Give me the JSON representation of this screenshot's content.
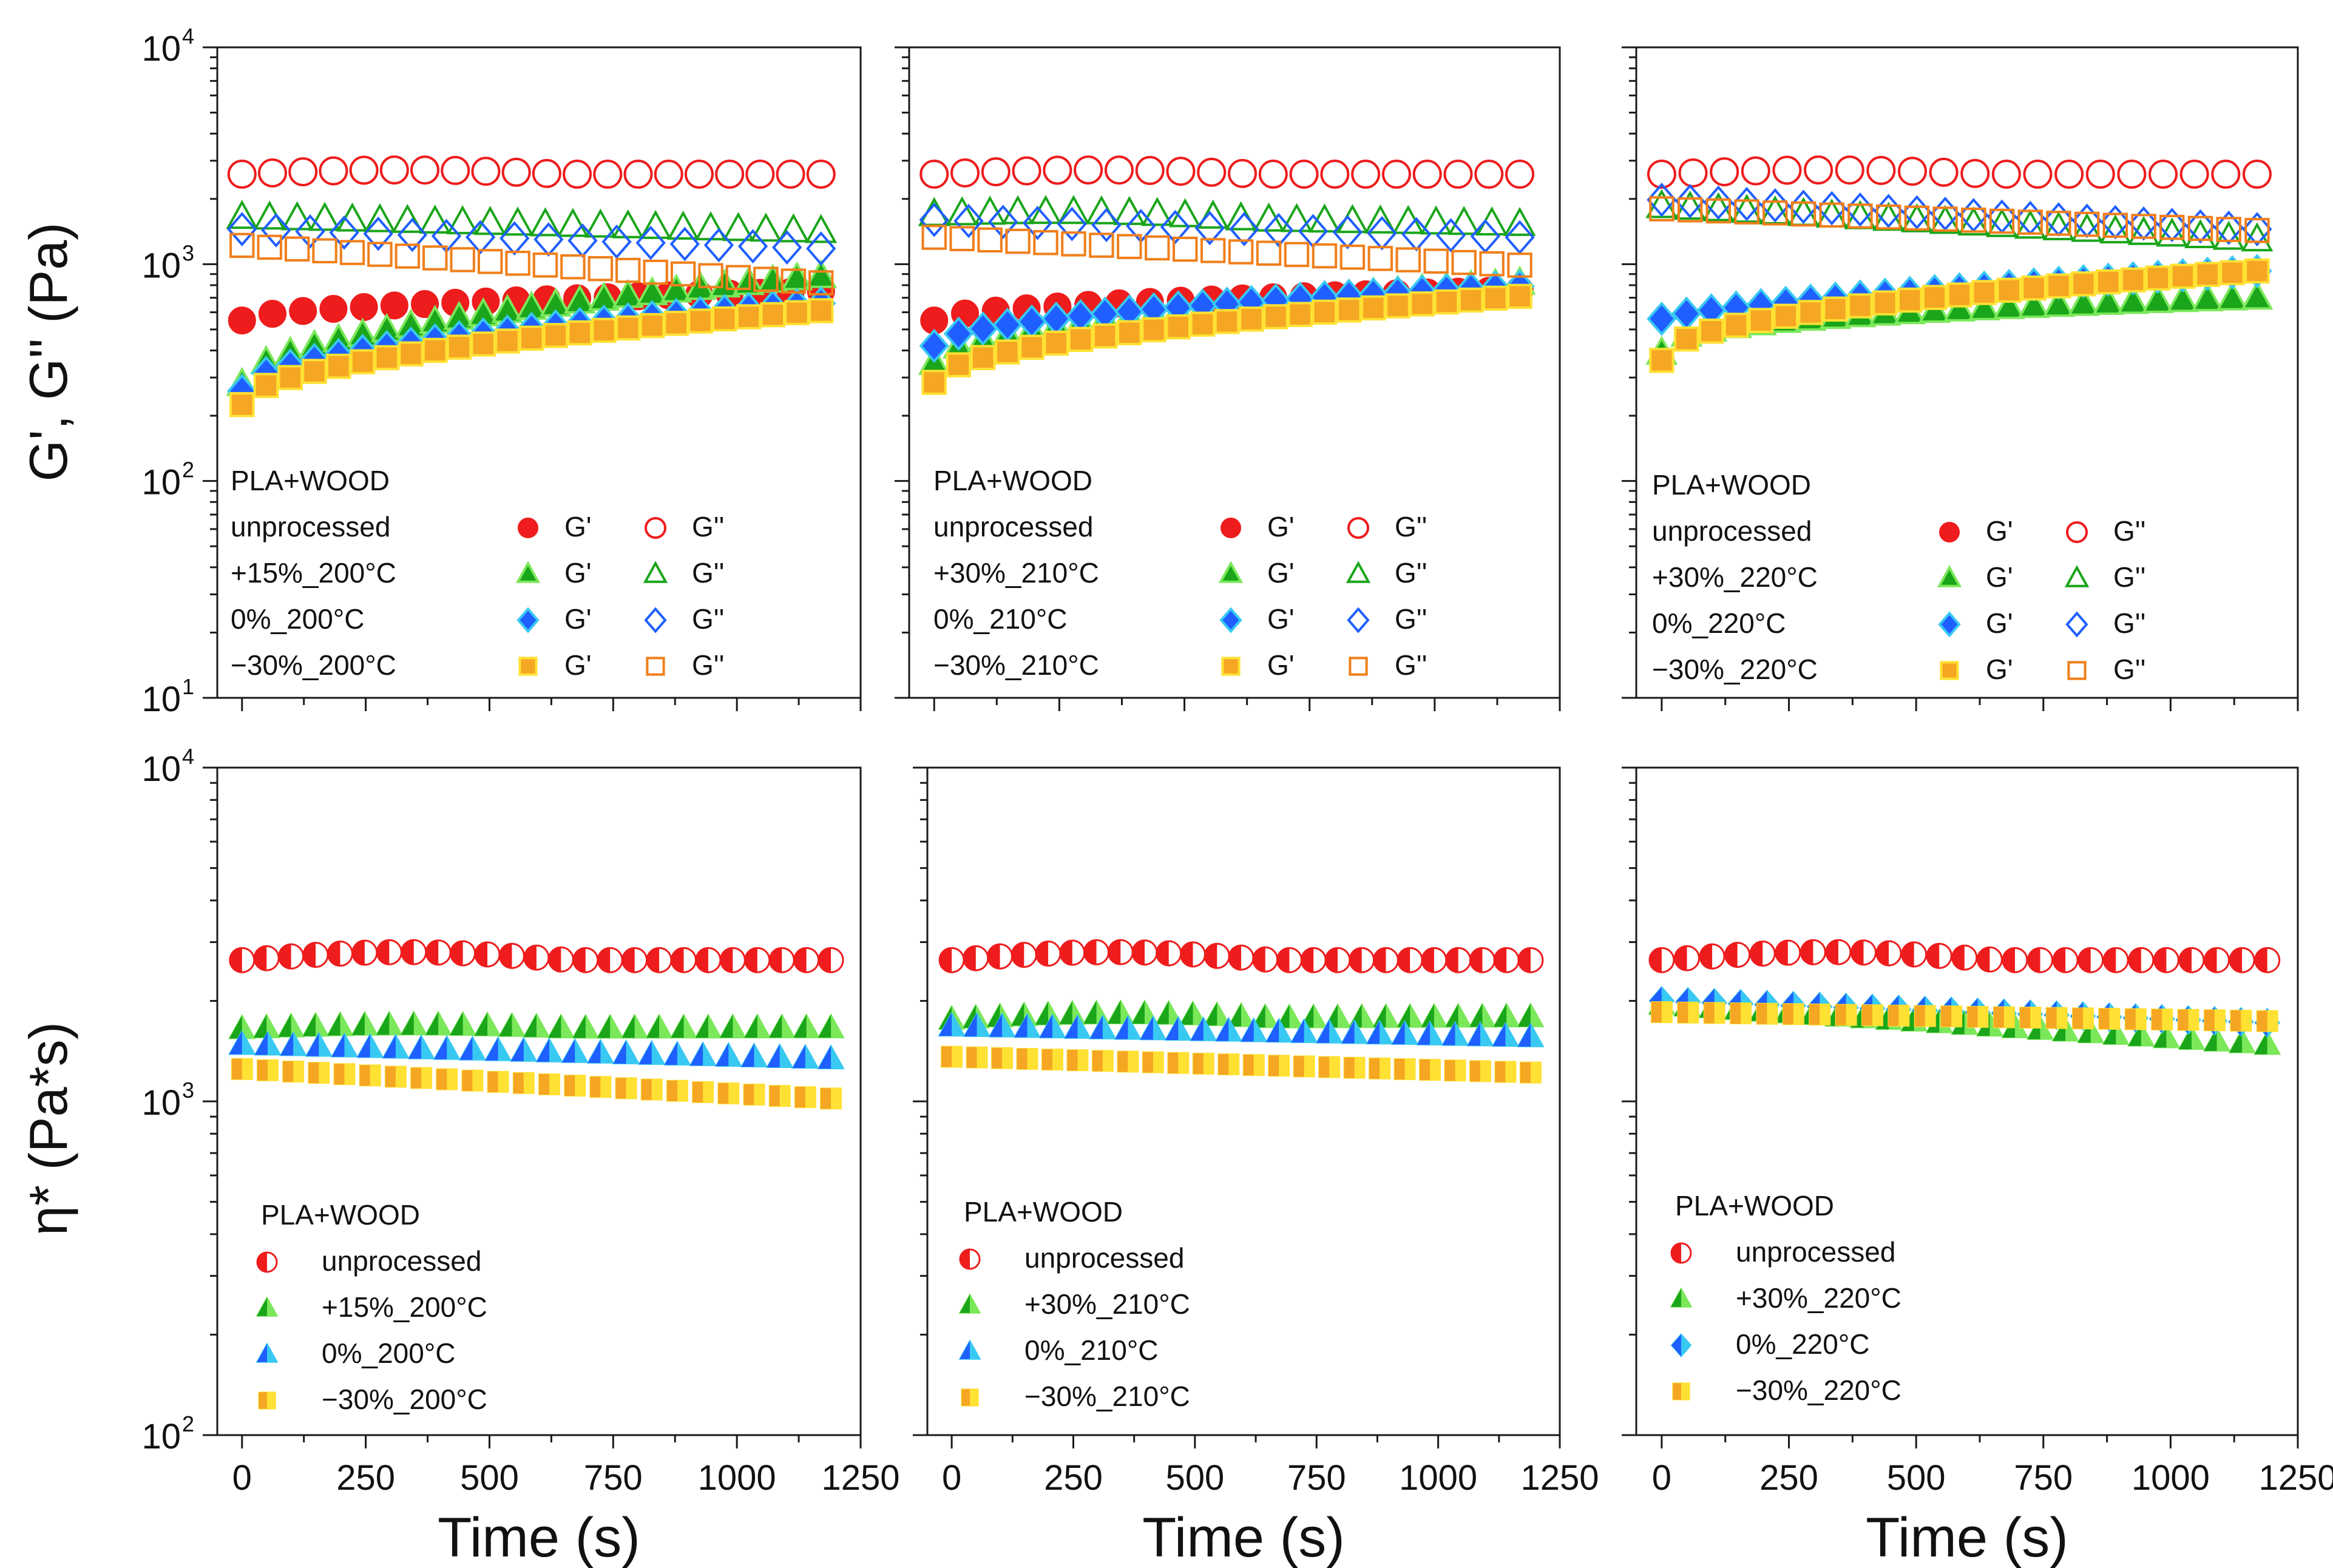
{
  "figure": {
    "top_ylabel": "G', G'' (Pa)",
    "bottom_ylabel": "η* (Pa*s)"
  },
  "colors": {
    "unprocessed": "#ee1c1c",
    "plus": "#1aa51a",
    "plus_edge": "#7be85a",
    "zero": "#1f5fff",
    "zero_edge": "#38c9f2",
    "minus": "#f5a623",
    "minus_edge": "#ffe133",
    "minus_open": "#f07f1a"
  },
  "chart_data": [
    {
      "type": "scatter",
      "panel": "top-left",
      "title": "",
      "xlabel": "",
      "ylabel": "G', G'' (Pa)",
      "xlim": [
        -50,
        1250
      ],
      "ylim": [
        10,
        10000
      ],
      "yscale": "log",
      "x_ticks": [
        "0",
        "250",
        "500",
        "750",
        "1000",
        "1250"
      ],
      "y_ticks": [
        {
          "base": "10",
          "exp": "1"
        },
        {
          "base": "10",
          "exp": "2"
        },
        {
          "base": "10",
          "exp": "3"
        },
        {
          "base": "10",
          "exp": "4"
        }
      ],
      "legend": {
        "title": "PLA+WOOD",
        "rows": [
          {
            "label": "unprocessed",
            "g1": "G'",
            "g2": "G''"
          },
          {
            "label": "+15%_200°C",
            "g1": "G'",
            "g2": "G''"
          },
          {
            "label": "0%_200°C",
            "g1": "G'",
            "g2": "G''"
          },
          {
            "label": "−30%_200°C",
            "g1": "G'",
            "g2": "G''"
          }
        ]
      },
      "series": [
        {
          "name": "unprocessed G'",
          "marker": "circle",
          "fill": "filled",
          "color": "unprocessed",
          "x_start": 0,
          "x_end": 1170,
          "count": 20,
          "y_start": 550,
          "y_end": 750,
          "shape": 0.5
        },
        {
          "name": "unprocessed G''",
          "marker": "circle",
          "fill": "open",
          "color": "unprocessed",
          "x_start": 0,
          "x_end": 1170,
          "count": 20,
          "y_start": 2600,
          "y_end": 2600,
          "y_peak": 2720,
          "shape": 1
        },
        {
          "name": "+15%_200°C G'",
          "marker": "triangle",
          "fill": "filled",
          "color": "plus",
          "x_start": 0,
          "x_end": 1170,
          "count": 25,
          "y_start": 280,
          "y_end": 880,
          "shape": 0.5
        },
        {
          "name": "+15%_200°C G''",
          "marker": "triangle",
          "fill": "open",
          "color": "plus",
          "x_start": 0,
          "x_end": 1170,
          "count": 22,
          "y_start": 1650,
          "y_end": 1420,
          "shape": 1
        },
        {
          "name": "0%_200°C G'",
          "marker": "diamond",
          "fill": "filled",
          "color": "zero",
          "x_start": 0,
          "x_end": 1170,
          "count": 25,
          "y_start": 260,
          "y_end": 660,
          "shape": 0.5
        },
        {
          "name": "0%_200°C G''",
          "marker": "diamond",
          "fill": "open",
          "color": "zero",
          "x_start": 0,
          "x_end": 1170,
          "count": 18,
          "y_start": 1450,
          "y_end": 1180,
          "shape": 1
        },
        {
          "name": "−30%_200°C G'",
          "marker": "square",
          "fill": "filled",
          "color": "minus",
          "x_start": 0,
          "x_end": 1170,
          "count": 25,
          "y_start": 225,
          "y_end": 610,
          "shape": 0.5
        },
        {
          "name": "−30%_200°C G''",
          "marker": "square",
          "fill": "open",
          "color": "minus",
          "x_start": 0,
          "x_end": 1170,
          "count": 22,
          "y_start": 1220,
          "y_end": 820,
          "shape": 1
        }
      ]
    },
    {
      "type": "scatter",
      "panel": "top-middle",
      "title": "",
      "xlabel": "",
      "ylabel": "",
      "xlim": [
        -50,
        1250
      ],
      "ylim": [
        10,
        10000
      ],
      "yscale": "log",
      "x_ticks": [
        "0",
        "250",
        "500",
        "750",
        "1000",
        "1250"
      ],
      "y_ticks": [],
      "legend": {
        "title": "PLA+WOOD",
        "rows": [
          {
            "label": "unprocessed",
            "g1": "G'",
            "g2": "G''"
          },
          {
            "label": "+30%_210°C",
            "g1": "G'",
            "g2": "G''"
          },
          {
            "label": "0%_210°C",
            "g1": "G'",
            "g2": "G''"
          },
          {
            "label": "−30%_210°C",
            "g1": "G'",
            "g2": "G''"
          }
        ]
      },
      "series": [
        {
          "name": "unprocessed G'",
          "marker": "circle",
          "fill": "filled",
          "color": "unprocessed",
          "x_start": 0,
          "x_end": 1170,
          "count": 20,
          "y_start": 550,
          "y_end": 760,
          "shape": 0.5
        },
        {
          "name": "unprocessed G''",
          "marker": "circle",
          "fill": "open",
          "color": "unprocessed",
          "x_start": 0,
          "x_end": 1170,
          "count": 20,
          "y_start": 2600,
          "y_end": 2600,
          "y_peak": 2720,
          "shape": 1
        },
        {
          "name": "+30%_210°C G'",
          "marker": "triangle",
          "fill": "filled",
          "color": "plus",
          "x_start": 0,
          "x_end": 1170,
          "count": 25,
          "y_start": 350,
          "y_end": 820,
          "shape": 0.5
        },
        {
          "name": "+30%_210°C G''",
          "marker": "triangle",
          "fill": "open",
          "color": "plus",
          "x_start": 0,
          "x_end": 1170,
          "count": 22,
          "y_start": 1700,
          "y_end": 1530,
          "y_peak": 1780,
          "shape": 1
        },
        {
          "name": "0%_210°C G'",
          "marker": "diamond",
          "fill": "filled",
          "color": "zero",
          "x_start": 0,
          "x_end": 1170,
          "count": 25,
          "y_start": 420,
          "y_end": 790,
          "shape": 0.5
        },
        {
          "name": "0%_210°C G''",
          "marker": "diamond",
          "fill": "open",
          "color": "zero",
          "x_start": 0,
          "x_end": 1170,
          "count": 18,
          "y_start": 1600,
          "y_end": 1330,
          "shape": 1
        },
        {
          "name": "−30%_210°C G'",
          "marker": "square",
          "fill": "filled",
          "color": "minus",
          "x_start": 0,
          "x_end": 1170,
          "count": 25,
          "y_start": 285,
          "y_end": 710,
          "shape": 0.5
        },
        {
          "name": "−30%_210°C G''",
          "marker": "square",
          "fill": "open",
          "color": "minus",
          "x_start": 0,
          "x_end": 1170,
          "count": 22,
          "y_start": 1330,
          "y_end": 990,
          "shape": 1
        }
      ]
    },
    {
      "type": "scatter",
      "panel": "top-right",
      "title": "",
      "xlabel": "",
      "ylabel": "",
      "xlim": [
        -50,
        1250
      ],
      "ylim": [
        10,
        10000
      ],
      "yscale": "log",
      "x_ticks": [
        "0",
        "250",
        "500",
        "750",
        "1000",
        "1250"
      ],
      "y_ticks": [],
      "legend": {
        "title": "PLA+WOOD",
        "rows": [
          {
            "label": "unprocessed",
            "g1": "G'",
            "g2": "G''"
          },
          {
            "label": "+30%_220°C",
            "g1": "G'",
            "g2": "G''"
          },
          {
            "label": "0%_220°C",
            "g1": "G'",
            "g2": "G''"
          },
          {
            "label": "−30%_220°C",
            "g1": "G'",
            "g2": "G''"
          }
        ]
      },
      "series": [
        {
          "name": "unprocessed G''",
          "marker": "circle",
          "fill": "open",
          "color": "unprocessed",
          "x_start": 0,
          "x_end": 1170,
          "count": 20,
          "y_start": 2600,
          "y_end": 2600,
          "y_peak": 2720,
          "shape": 1
        },
        {
          "name": "+30%_220°C G'",
          "marker": "triangle",
          "fill": "filled",
          "color": "plus",
          "x_start": 0,
          "x_end": 1170,
          "count": 25,
          "y_start": 390,
          "y_end": 700,
          "shape": 0.35
        },
        {
          "name": "+30%_220°C G''",
          "marker": "triangle",
          "fill": "open",
          "color": "plus",
          "x_start": 0,
          "x_end": 1170,
          "count": 22,
          "y_start": 1850,
          "y_end": 1300,
          "shape": 1
        },
        {
          "name": "0%_220°C G'",
          "marker": "diamond",
          "fill": "filled",
          "color": "zero",
          "x_start": 0,
          "x_end": 1170,
          "count": 25,
          "y_start": 560,
          "y_end": 930,
          "shape": 0.7
        },
        {
          "name": "0%_220°C G''",
          "marker": "diamond",
          "fill": "open",
          "color": "zero",
          "x_start": 0,
          "x_end": 1170,
          "count": 22,
          "y_start": 1980,
          "y_end": 1450,
          "shape": 1
        },
        {
          "name": "−30%_220°C G'",
          "marker": "square",
          "fill": "filled",
          "color": "minus",
          "x_start": 0,
          "x_end": 1170,
          "count": 25,
          "y_start": 360,
          "y_end": 930,
          "shape": 0.45
        },
        {
          "name": "−30%_220°C G''",
          "marker": "square",
          "fill": "open",
          "color": "minus",
          "x_start": 0,
          "x_end": 1170,
          "count": 22,
          "y_start": 1800,
          "y_end": 1430,
          "shape": 1
        }
      ]
    },
    {
      "type": "scatter",
      "panel": "bottom-left",
      "title": "",
      "xlabel": "Time (s)",
      "ylabel": "η* (Pa*s)",
      "xlim": [
        -50,
        1250
      ],
      "ylim": [
        100,
        10000
      ],
      "yscale": "log",
      "x_ticks": [
        "0",
        "250",
        "500",
        "750",
        "1000",
        "1250"
      ],
      "y_ticks": [
        {
          "base": "10",
          "exp": "2"
        },
        {
          "base": "10",
          "exp": "3"
        },
        {
          "base": "10",
          "exp": "4"
        }
      ],
      "legend": {
        "title": "PLA+WOOD",
        "rows": [
          {
            "label": "unprocessed"
          },
          {
            "label": "+15%_200°C"
          },
          {
            "label": "0%_200°C"
          },
          {
            "label": "−30%_200°C"
          }
        ]
      },
      "series": [
        {
          "name": "unprocessed",
          "marker": "circle",
          "fill": "half",
          "color": "unprocessed",
          "x_start": 0,
          "x_end": 1190,
          "count": 25,
          "y_start": 2650,
          "y_end": 2650,
          "y_peak": 2800,
          "shape": 1
        },
        {
          "name": "+15%_200°C",
          "marker": "triangle",
          "fill": "half",
          "color": "plus",
          "x_start": 0,
          "x_end": 1190,
          "count": 25,
          "y_start": 1650,
          "y_end": 1660,
          "y_peak": 1700,
          "shape": 1
        },
        {
          "name": "0%_200°C",
          "marker": "triangle",
          "fill": "half",
          "color": "zero",
          "x_start": 0,
          "x_end": 1190,
          "count": 24,
          "y_start": 1480,
          "y_end": 1340,
          "shape": 1
        },
        {
          "name": "−30%_200°C",
          "marker": "square",
          "fill": "half",
          "color": "minus",
          "x_start": 0,
          "x_end": 1190,
          "count": 24,
          "y_start": 1250,
          "y_end": 1020,
          "shape": 1
        }
      ]
    },
    {
      "type": "scatter",
      "panel": "bottom-middle",
      "title": "",
      "xlabel": "Time (s)",
      "ylabel": "",
      "xlim": [
        -50,
        1250
      ],
      "ylim": [
        100,
        10000
      ],
      "yscale": "log",
      "x_ticks": [
        "0",
        "250",
        "500",
        "750",
        "1000",
        "1250"
      ],
      "y_ticks": [],
      "legend": {
        "title": "PLA+WOOD",
        "rows": [
          {
            "label": "unprocessed"
          },
          {
            "label": "+30%_210°C"
          },
          {
            "label": "0%_210°C"
          },
          {
            "label": "−30%_210°C"
          }
        ]
      },
      "series": [
        {
          "name": "unprocessed",
          "marker": "circle",
          "fill": "half",
          "color": "unprocessed",
          "x_start": 0,
          "x_end": 1190,
          "count": 25,
          "y_start": 2650,
          "y_end": 2650,
          "y_peak": 2800,
          "shape": 1
        },
        {
          "name": "+30%_210°C",
          "marker": "triangle",
          "fill": "half",
          "color": "plus",
          "x_start": 0,
          "x_end": 1190,
          "count": 25,
          "y_start": 1760,
          "y_end": 1790,
          "y_peak": 1850,
          "shape": 1
        },
        {
          "name": "0%_210°C",
          "marker": "triangle",
          "fill": "half",
          "color": "zero",
          "x_start": 0,
          "x_end": 1190,
          "count": 24,
          "y_start": 1680,
          "y_end": 1560,
          "shape": 1
        },
        {
          "name": "−30%_210°C",
          "marker": "square",
          "fill": "half",
          "color": "minus",
          "x_start": 0,
          "x_end": 1190,
          "count": 24,
          "y_start": 1360,
          "y_end": 1220,
          "shape": 1
        }
      ]
    },
    {
      "type": "scatter",
      "panel": "bottom-right",
      "title": "",
      "xlabel": "Time (s)",
      "ylabel": "",
      "xlim": [
        -50,
        1250
      ],
      "ylim": [
        100,
        10000
      ],
      "yscale": "log",
      "x_ticks": [
        "0",
        "250",
        "500",
        "750",
        "1000",
        "1250"
      ],
      "y_ticks": [],
      "legend": {
        "title": "PLA+WOOD",
        "rows": [
          {
            "label": "unprocessed"
          },
          {
            "label": "+30%_220°C"
          },
          {
            "label": "0%_220°C"
          },
          {
            "label": "−30%_220°C"
          }
        ]
      },
      "series": [
        {
          "name": "unprocessed",
          "marker": "circle",
          "fill": "half",
          "color": "unprocessed",
          "x_start": 0,
          "x_end": 1190,
          "count": 25,
          "y_start": 2650,
          "y_end": 2650,
          "y_peak": 2800,
          "shape": 1
        },
        {
          "name": "+30%_220°C",
          "marker": "triangle",
          "fill": "half",
          "color": "plus",
          "x_start": 0,
          "x_end": 1190,
          "count": 25,
          "y_start": 1950,
          "y_end": 1480,
          "shape": 1
        },
        {
          "name": "0%_220°C",
          "marker": "diamond",
          "fill": "half",
          "color": "zero",
          "x_start": 0,
          "x_end": 1190,
          "count": 24,
          "y_start": 2000,
          "y_end": 1720,
          "shape": 1
        },
        {
          "name": "−30%_220°C",
          "marker": "square",
          "fill": "half",
          "color": "minus",
          "x_start": 0,
          "x_end": 1190,
          "count": 24,
          "y_start": 1850,
          "y_end": 1740,
          "shape": 1
        }
      ]
    }
  ]
}
